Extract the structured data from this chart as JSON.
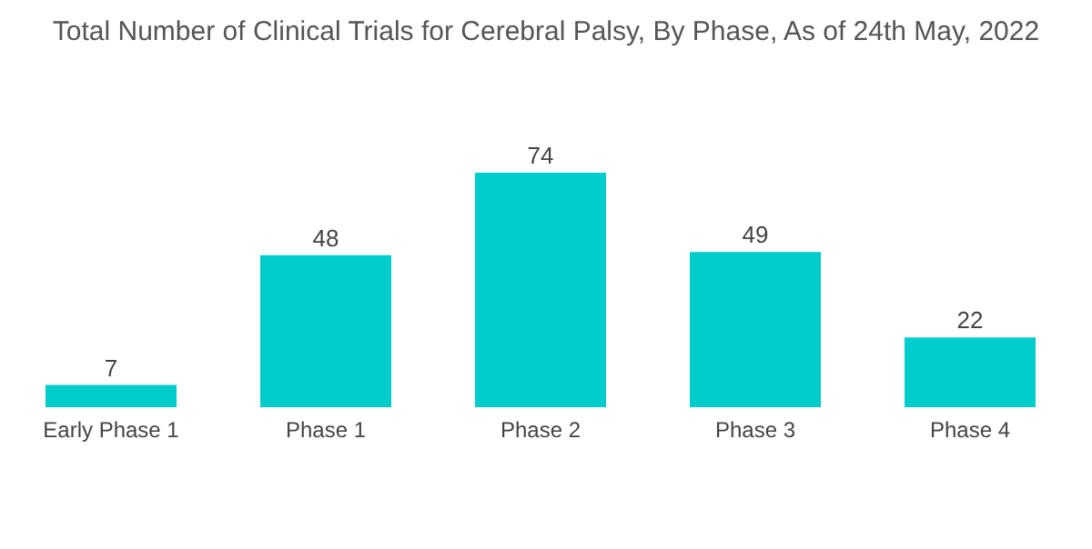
{
  "chart_data": {
    "type": "bar",
    "title": "Total Number of Clinical Trials for Cerebral Palsy, By Phase, As of 24th May, 2022",
    "categories": [
      "Early Phase 1",
      "Phase 1",
      "Phase 2",
      "Phase 3",
      "Phase 4"
    ],
    "values": [
      7,
      48,
      74,
      49,
      22
    ],
    "color": "#00cccc",
    "data_labels": true,
    "grid": false,
    "legend": false
  }
}
